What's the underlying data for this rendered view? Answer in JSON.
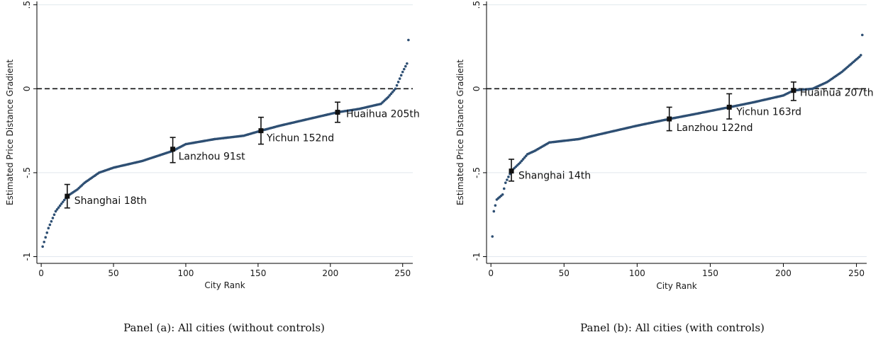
{
  "colors": {
    "series": "#2e4f73",
    "marker": "#111111",
    "grid": "#e1e8ee",
    "axis": "#000000",
    "reference_line": "#111111"
  },
  "chart_data": [
    {
      "type": "scatter",
      "panel_caption": "Panel (a): All cities (without controls)",
      "xlabel": "City Rank",
      "ylabel": "Estimated Price Distance Gradient",
      "xlim": [
        -3,
        257
      ],
      "ylim": [
        -1.04,
        0.52
      ],
      "x_ticks": [
        0,
        50,
        100,
        150,
        200,
        250
      ],
      "y_ticks": [
        0.5,
        0,
        -0.5,
        -1
      ],
      "y_tick_labels": [
        ".5",
        "0",
        "-.5",
        "-1"
      ],
      "grid": true,
      "reference_line_y": 0,
      "n_points": 254,
      "curve_knots": [
        [
          1,
          -0.94
        ],
        [
          5,
          -0.83
        ],
        [
          10,
          -0.73
        ],
        [
          18,
          -0.64
        ],
        [
          25,
          -0.6
        ],
        [
          30,
          -0.56
        ],
        [
          40,
          -0.5
        ],
        [
          50,
          -0.47
        ],
        [
          70,
          -0.43
        ],
        [
          91,
          -0.37
        ],
        [
          100,
          -0.33
        ],
        [
          120,
          -0.3
        ],
        [
          140,
          -0.28
        ],
        [
          152,
          -0.25
        ],
        [
          165,
          -0.22
        ],
        [
          180,
          -0.19
        ],
        [
          195,
          -0.16
        ],
        [
          205,
          -0.14
        ],
        [
          220,
          -0.12
        ],
        [
          235,
          -0.09
        ],
        [
          240,
          -0.05
        ],
        [
          245,
          0.0
        ],
        [
          250,
          0.1
        ],
        [
          253,
          0.15
        ],
        [
          254,
          0.29
        ]
      ],
      "highlighted": [
        {
          "label": "Shanghai 18th",
          "x": 18,
          "y": -0.64,
          "ci": [
            -0.71,
            -0.57
          ]
        },
        {
          "label": "Lanzhou 91st",
          "x": 91,
          "y": -0.36,
          "ci": [
            -0.44,
            -0.29
          ]
        },
        {
          "label": "Yichun 152nd",
          "x": 152,
          "y": -0.25,
          "ci": [
            -0.33,
            -0.17
          ]
        },
        {
          "label": "Huaihua 205th",
          "x": 205,
          "y": -0.14,
          "ci": [
            -0.2,
            -0.08
          ]
        }
      ]
    },
    {
      "type": "scatter",
      "panel_caption": "Panel (b): All cities (with controls)",
      "xlabel": "City Rank",
      "ylabel": "Estimated Price Distance Gradient",
      "xlim": [
        -3,
        257
      ],
      "ylim": [
        -1.04,
        0.52
      ],
      "x_ticks": [
        0,
        50,
        100,
        150,
        200,
        250
      ],
      "y_ticks": [
        0.5,
        0,
        -0.5,
        -1
      ],
      "y_tick_labels": [
        ".5",
        "0",
        "-.5",
        "-1"
      ],
      "grid": true,
      "reference_line_y": 0,
      "n_points": 254,
      "curve_knots": [
        [
          1,
          -0.88
        ],
        [
          2,
          -0.73
        ],
        [
          4,
          -0.66
        ],
        [
          8,
          -0.63
        ],
        [
          10,
          -0.56
        ],
        [
          14,
          -0.49
        ],
        [
          20,
          -0.44
        ],
        [
          25,
          -0.39
        ],
        [
          30,
          -0.37
        ],
        [
          40,
          -0.32
        ],
        [
          60,
          -0.3
        ],
        [
          80,
          -0.26
        ],
        [
          100,
          -0.22
        ],
        [
          122,
          -0.18
        ],
        [
          140,
          -0.15
        ],
        [
          163,
          -0.11
        ],
        [
          180,
          -0.08
        ],
        [
          200,
          -0.04
        ],
        [
          207,
          -0.01
        ],
        [
          220,
          0.0
        ],
        [
          230,
          0.04
        ],
        [
          240,
          0.1
        ],
        [
          252,
          0.19
        ],
        [
          253,
          0.2
        ],
        [
          254,
          0.32
        ]
      ],
      "highlighted": [
        {
          "label": "Shanghai 14th",
          "x": 14,
          "y": -0.49,
          "ci": [
            -0.55,
            -0.42
          ]
        },
        {
          "label": "Lanzhou 122nd",
          "x": 122,
          "y": -0.18,
          "ci": [
            -0.25,
            -0.11
          ]
        },
        {
          "label": "Yichun 163rd",
          "x": 163,
          "y": -0.11,
          "ci": [
            -0.18,
            -0.03
          ]
        },
        {
          "label": "Huaihua 207th",
          "x": 207,
          "y": -0.01,
          "ci": [
            -0.07,
            0.04
          ]
        }
      ]
    }
  ]
}
